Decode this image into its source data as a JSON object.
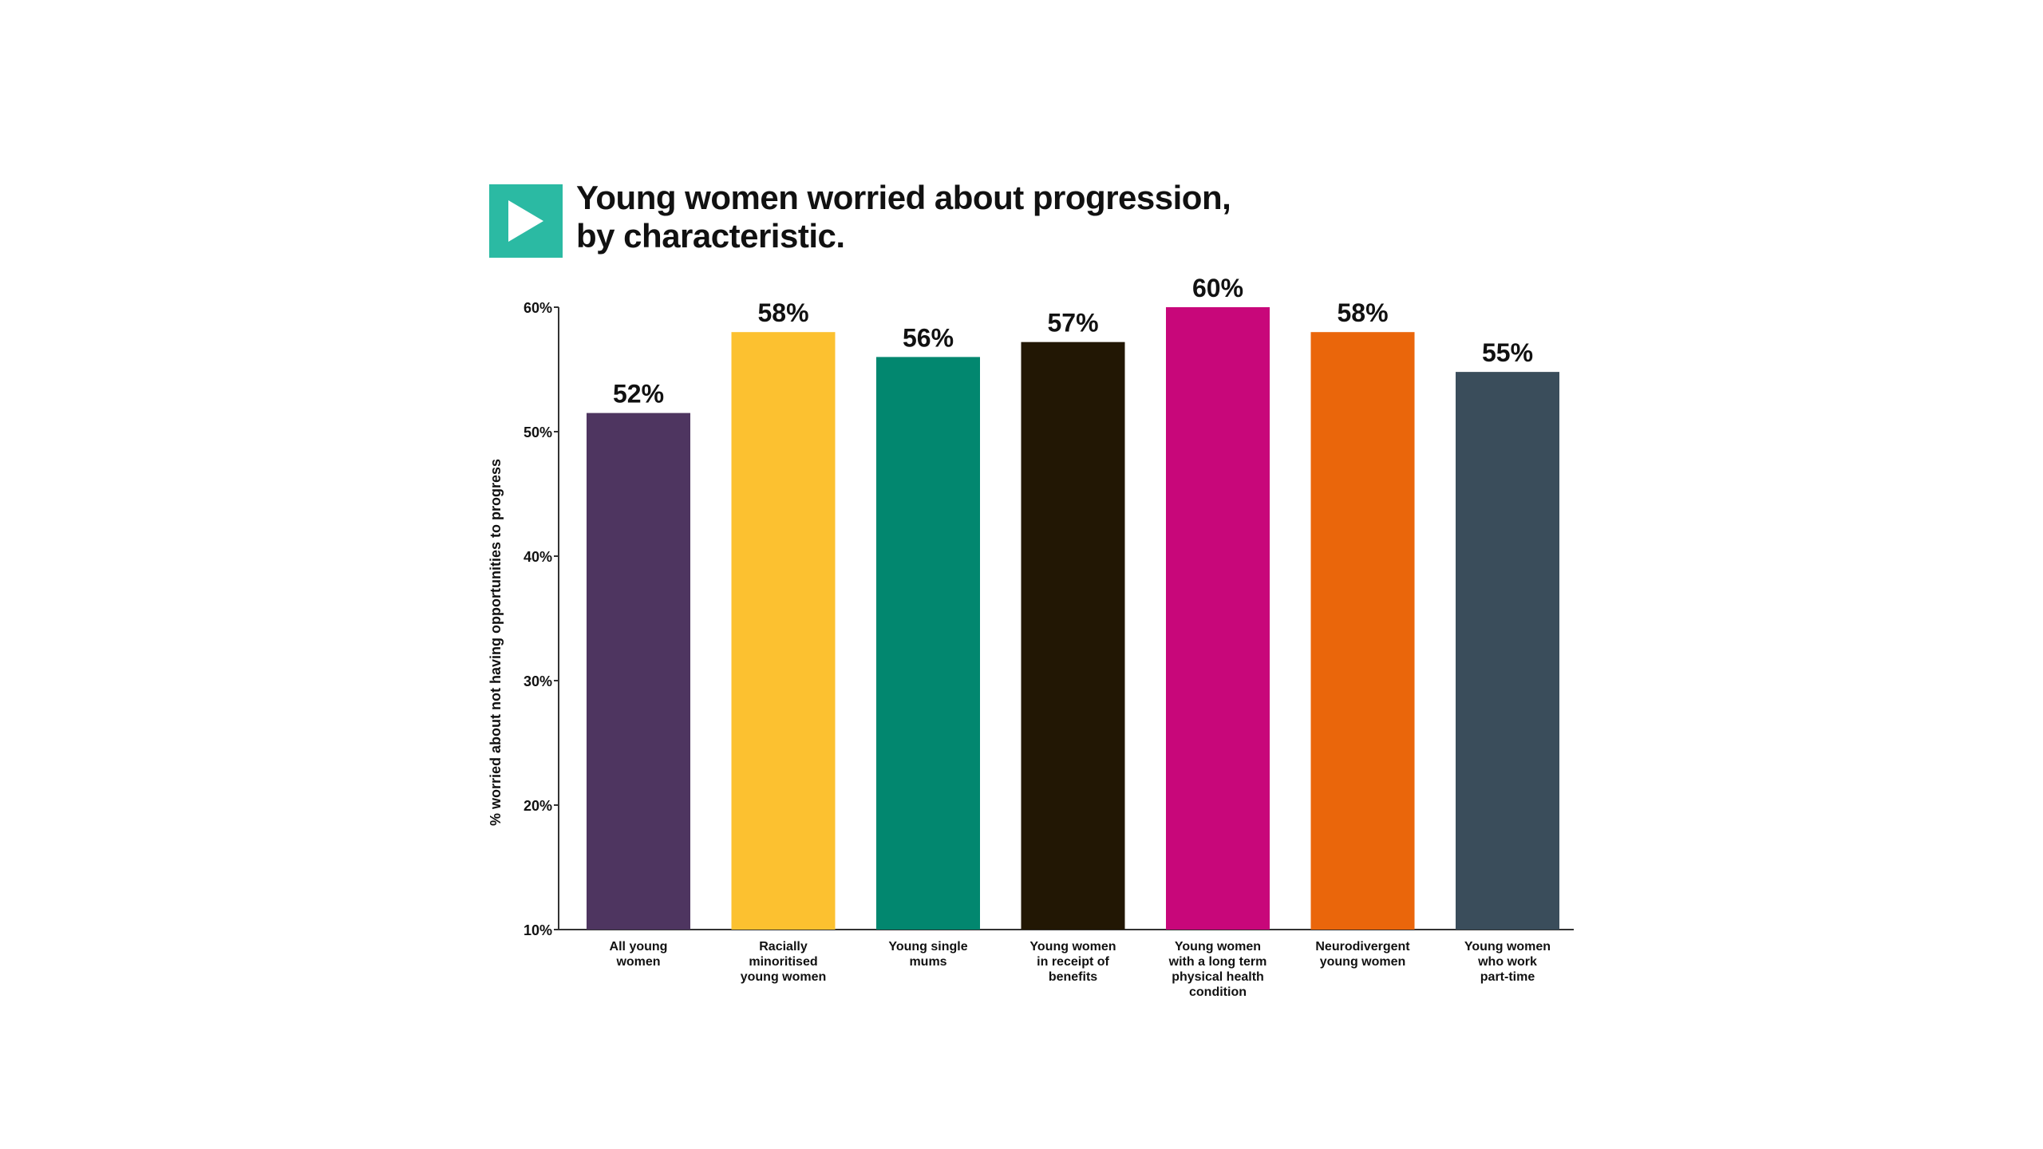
{
  "title_lines": [
    "Young women worried about progression,",
    "by characteristic."
  ],
  "logo_icon": "play-triangle-icon",
  "colors": {
    "logo": "#2bbaa3",
    "axis": "#333333",
    "text": "#111111"
  },
  "chart_data": {
    "type": "bar",
    "title": "Young women worried about progression, by characteristic.",
    "xlabel": "",
    "ylabel": "% worried about not having opportunities to progress",
    "ylim": [
      10,
      60
    ],
    "yticks": [
      10,
      20,
      30,
      40,
      50,
      60
    ],
    "ytick_labels": [
      "10%",
      "20%",
      "30%",
      "40%",
      "50%",
      "60%"
    ],
    "grid": false,
    "legend": "none",
    "categories": [
      [
        "All young",
        "women"
      ],
      [
        "Racially",
        "minoritised",
        "young women"
      ],
      [
        "Young single",
        "mums"
      ],
      [
        "Young women",
        "in receipt of",
        "benefits"
      ],
      [
        "Young women",
        "with a long term",
        "physical health",
        "condition"
      ],
      [
        "Neurodivergent",
        "young women"
      ],
      [
        "Young women",
        "who work",
        "part-time"
      ]
    ],
    "values": [
      51.5,
      58,
      56,
      57.2,
      60,
      58,
      54.8
    ],
    "data_labels": [
      "52%",
      "58%",
      "56%",
      "57%",
      "60%",
      "58%",
      "55%"
    ],
    "bar_colors": [
      "#4e3560",
      "#fcc130",
      "#02876f",
      "#221704",
      "#c8077a",
      "#ea660b",
      "#3a4d5b"
    ]
  }
}
